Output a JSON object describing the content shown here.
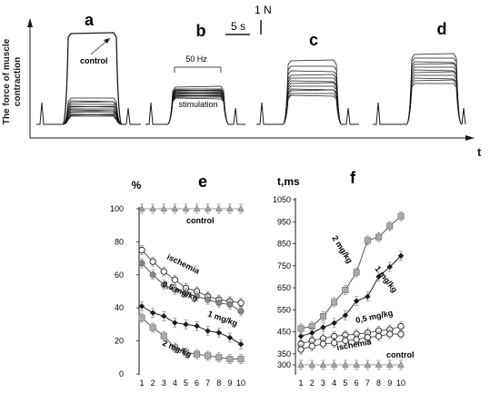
{
  "colors": {
    "ink": "#1a1a1a",
    "gray_series": "#888888",
    "light_series": "#aaaaaa",
    "control_series": "#999999"
  },
  "top": {
    "ylabel_line1": "The force of muscle",
    "ylabel_line2": "contraction",
    "xlabel": "t",
    "panels": [
      "a",
      "b",
      "c",
      "d"
    ],
    "scale_time": "5 s",
    "scale_force": "1 N",
    "control_label": "control",
    "freq_label": "50 Hz",
    "stim_label": "stimulation"
  },
  "chart_data": [
    {
      "type": "line",
      "panel": "e",
      "title": "e",
      "ylabel": "%",
      "xlabel": "",
      "x": [
        1,
        2,
        3,
        4,
        5,
        6,
        7,
        8,
        9,
        10
      ],
      "ylim": [
        0,
        100
      ],
      "yticks": [
        0,
        20,
        40,
        60,
        80,
        100
      ],
      "series": [
        {
          "name": "control",
          "marker": "triangle",
          "values": [
            100,
            100,
            100,
            100,
            100,
            100,
            100,
            100,
            100,
            100
          ]
        },
        {
          "name": "ischemia",
          "marker": "open-circle",
          "values": [
            75,
            68,
            62,
            57,
            52,
            50,
            47,
            45,
            44,
            43
          ]
        },
        {
          "name": "0,5 mg/kg",
          "marker": "filled-circle",
          "values": [
            67,
            60,
            54,
            51,
            49,
            47,
            45,
            43,
            42,
            38
          ]
        },
        {
          "name": "1 mg/kg",
          "marker": "diamond",
          "values": [
            41,
            37,
            35,
            31,
            30,
            29,
            26,
            25,
            22,
            18
          ]
        },
        {
          "name": "2 mg/kg",
          "marker": "square",
          "values": [
            34,
            28,
            23,
            16,
            13,
            12,
            11,
            10,
            9,
            9
          ]
        }
      ]
    },
    {
      "type": "line",
      "panel": "f",
      "title": "f",
      "ylabel": "t,ms",
      "xlabel": "",
      "x": [
        1,
        2,
        3,
        4,
        5,
        6,
        7,
        8,
        9,
        10
      ],
      "ylim": [
        300,
        1050
      ],
      "yticks": [
        300,
        350,
        450,
        550,
        650,
        750,
        850,
        950,
        1050
      ],
      "series": [
        {
          "name": "2 mg/kg",
          "marker": "square",
          "values": [
            465,
            475,
            520,
            585,
            640,
            720,
            865,
            880,
            930,
            975
          ]
        },
        {
          "name": "1 mg/kg",
          "marker": "diamond",
          "values": [
            430,
            445,
            470,
            490,
            525,
            590,
            610,
            700,
            745,
            795
          ]
        },
        {
          "name": "0,5 mg/kg",
          "marker": "open-circle",
          "values": [
            395,
            410,
            420,
            430,
            435,
            440,
            445,
            455,
            460,
            475
          ]
        },
        {
          "name": "ischemia",
          "marker": "open-circle",
          "values": [
            370,
            385,
            395,
            400,
            410,
            415,
            425,
            430,
            440,
            440
          ]
        },
        {
          "name": "control",
          "marker": "triangle",
          "values": [
            300,
            300,
            300,
            300,
            300,
            300,
            300,
            300,
            300,
            300
          ]
        }
      ]
    }
  ],
  "labels_e": {
    "control": "control",
    "ischemia": "ischemia",
    "half": "0,5 mg/kg",
    "one": "1 mg/kg",
    "two": "2 mg/kg"
  },
  "labels_f": {
    "two": "2 mg/kg",
    "one": "1 mg/kg",
    "half": "0,5 mg/kg",
    "ischemia": "ischemia",
    "control": "control"
  }
}
